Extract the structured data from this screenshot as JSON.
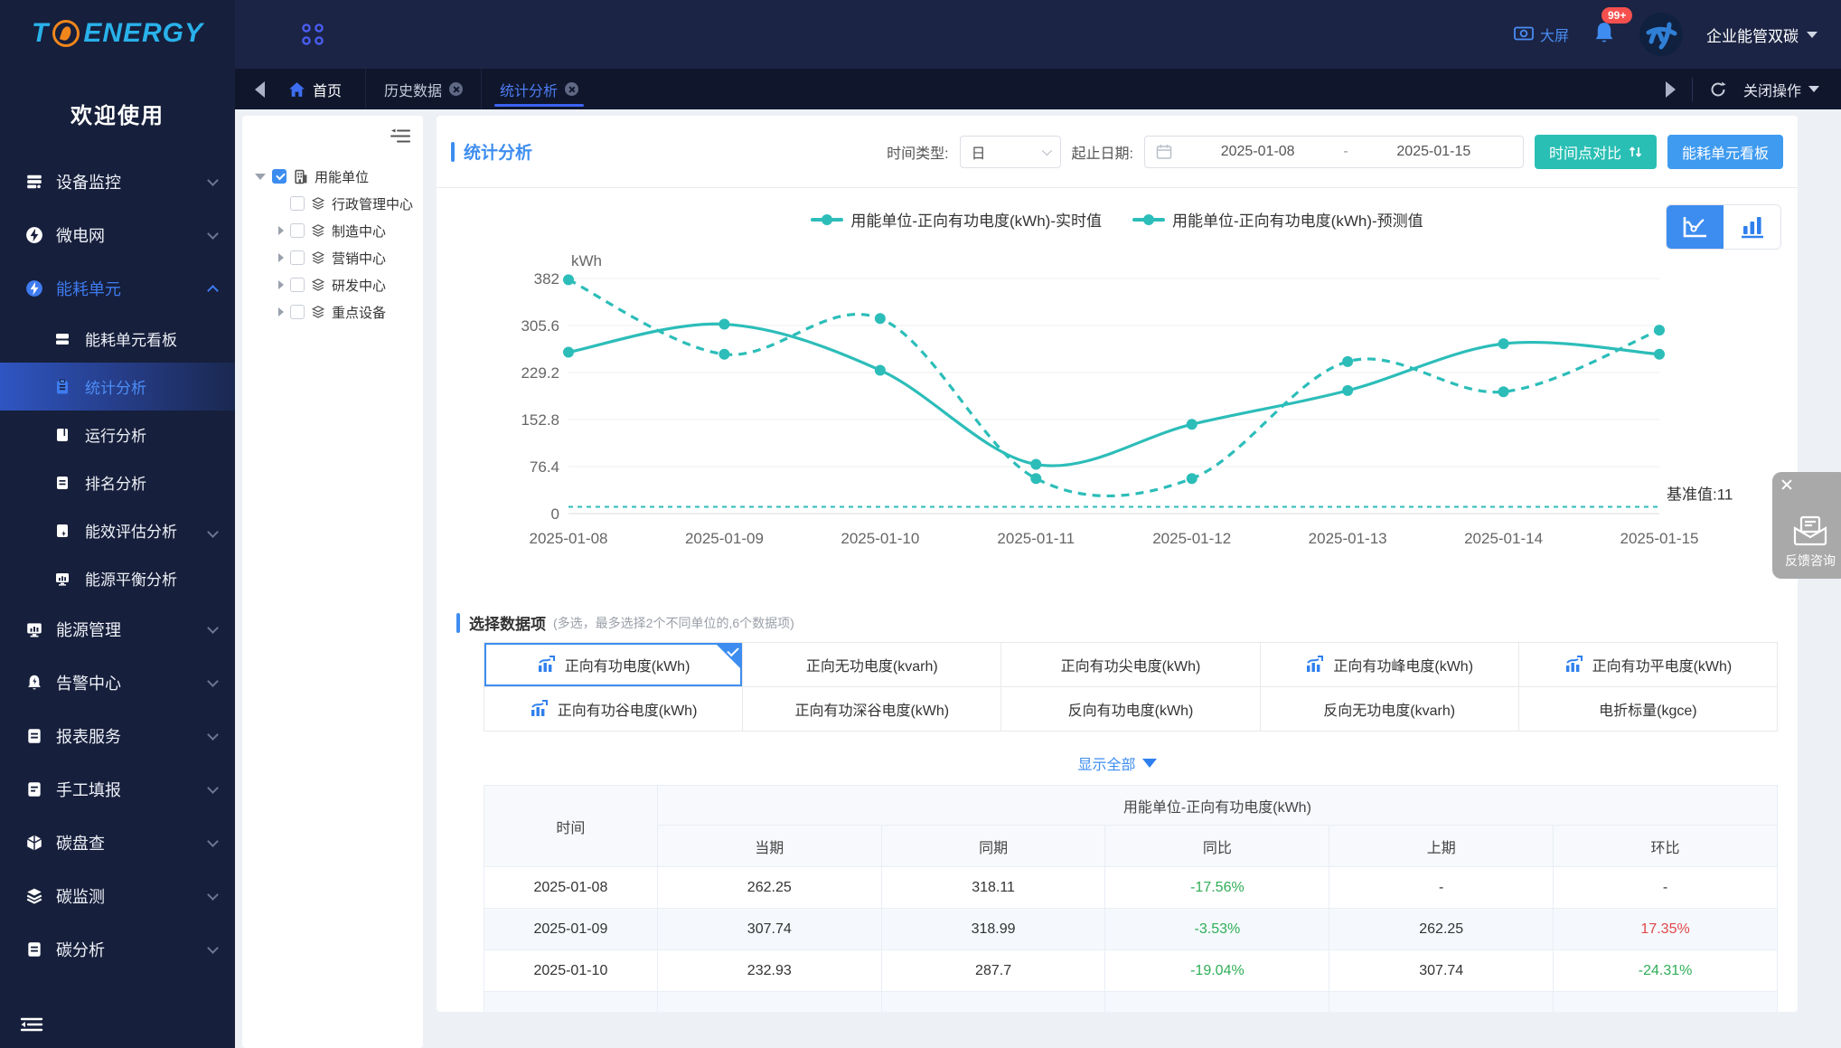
{
  "brand": {
    "logo_t": "T",
    "logo_rest": "ENERGY",
    "welcome": "欢迎使用"
  },
  "topbar": {
    "big_screen": "大屏",
    "badge": "99+",
    "org": "企业能管双碳"
  },
  "tabbar": {
    "home": "首页",
    "tab_history": "历史数据",
    "tab_stats": "统计分析",
    "close_ops": "关闭操作"
  },
  "sidebar": {
    "items": [
      {
        "label": "设备监控"
      },
      {
        "label": "微电网"
      },
      {
        "label": "能耗单元"
      },
      {
        "label": "能耗单元看板"
      },
      {
        "label": "统计分析"
      },
      {
        "label": "运行分析"
      },
      {
        "label": "排名分析"
      },
      {
        "label": "能效评估分析"
      },
      {
        "label": "能源平衡分析"
      },
      {
        "label": "能源管理"
      },
      {
        "label": "告警中心"
      },
      {
        "label": "报表服务"
      },
      {
        "label": "手工填报"
      },
      {
        "label": "碳盘查"
      },
      {
        "label": "碳监测"
      },
      {
        "label": "碳分析"
      }
    ]
  },
  "tree": {
    "root": "用能单位",
    "children": [
      {
        "label": "行政管理中心"
      },
      {
        "label": "制造中心"
      },
      {
        "label": "营销中心"
      },
      {
        "label": "研发中心"
      },
      {
        "label": "重点设备"
      }
    ]
  },
  "filters": {
    "title": "统计分析",
    "time_type_label": "时间类型:",
    "time_type_value": "日",
    "date_label": "起止日期:",
    "date_start": "2025-01-08",
    "date_sep": "-",
    "date_end": "2025-01-15",
    "btn_compare": "时间点对比",
    "btn_board": "能耗单元看板"
  },
  "chart_data": {
    "type": "line",
    "ylabel": "kWh",
    "ylim": [
      0,
      382
    ],
    "yticks": [
      0,
      76.4,
      152.8,
      229.2,
      305.6,
      382
    ],
    "x": [
      "2025-01-08",
      "2025-01-09",
      "2025-01-10",
      "2025-01-11",
      "2025-01-12",
      "2025-01-13",
      "2025-01-14",
      "2025-01-15"
    ],
    "series": [
      {
        "name": "用能单位-正向有功电度(kWh)-实时值",
        "style": "solid",
        "values": [
          262.25,
          307.74,
          232.93,
          80,
          145,
          200,
          276,
          259
        ]
      },
      {
        "name": "用能单位-正向有功电度(kWh)-预测值",
        "style": "dashed",
        "values": [
          380,
          259,
          317,
          57,
          57,
          247,
          198,
          298
        ]
      }
    ],
    "baseline": {
      "label": "基准值:11",
      "value": 11
    },
    "color": "#2cbdb9",
    "legend_position": "top",
    "grid": true
  },
  "selector": {
    "title": "选择数据项",
    "note": "(多选，最多选择2个不同单位的,6个数据项)",
    "items": [
      {
        "label": "正向有功电度(kWh)"
      },
      {
        "label": "正向无功电度(kvarh)"
      },
      {
        "label": "正向有功尖电度(kWh)"
      },
      {
        "label": "正向有功峰电度(kWh)"
      },
      {
        "label": "正向有功平电度(kWh)"
      },
      {
        "label": "正向有功谷电度(kWh)"
      },
      {
        "label": "正向有功深谷电度(kWh)"
      },
      {
        "label": "反向有功电度(kWh)"
      },
      {
        "label": "反向无功电度(kvarh)"
      },
      {
        "label": "电折标量(kgce)"
      }
    ],
    "show_all": "显示全部"
  },
  "table": {
    "col_time": "时间",
    "group_header": "用能单位-正向有功电度(kWh)",
    "sub_headers": [
      "当期",
      "同期",
      "同比",
      "上期",
      "环比"
    ],
    "rows": [
      {
        "date": "2025-01-08",
        "current": "262.25",
        "same": "318.11",
        "yoy": "-17.56%",
        "yoy_class": "pct-green",
        "prev": "-",
        "prev_class": "",
        "mom": "-",
        "mom_class": ""
      },
      {
        "date": "2025-01-09",
        "current": "307.74",
        "same": "318.99",
        "yoy": "-3.53%",
        "yoy_class": "pct-green",
        "prev": "262.25",
        "prev_class": "",
        "mom": "17.35%",
        "mom_class": "pct-red"
      },
      {
        "date": "2025-01-10",
        "current": "232.93",
        "same": "287.7",
        "yoy": "-19.04%",
        "yoy_class": "pct-green",
        "prev": "307.74",
        "prev_class": "",
        "mom": "-24.31%",
        "mom_class": "pct-green"
      }
    ]
  },
  "feedback": {
    "label": "反馈咨询"
  },
  "colors": {
    "accent_blue": "#3d8df0",
    "teal": "#2cbdb9",
    "btn_teal": "#2abfb4",
    "btn_blue": "#3f9bf0",
    "green": "#2fae57",
    "red": "#e0484b",
    "sidebar_bg": "#161f3b",
    "topbar_bg": "#1b2444",
    "tabbar_bg": "#10172d"
  }
}
